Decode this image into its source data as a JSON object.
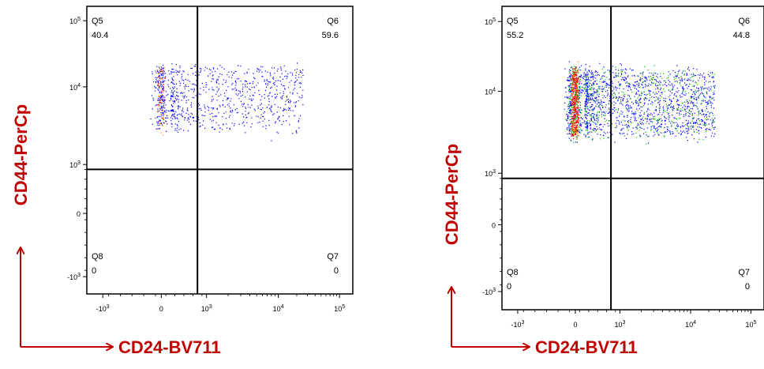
{
  "chart_data": [
    {
      "type": "scatter",
      "xlabel": "CD24-BV711",
      "ylabel": "CD44-PerCp",
      "x_scale": "biexponential",
      "y_scale": "biexponential",
      "x_ticks": [
        "-10^3",
        "0",
        "10^3",
        "10^4",
        "10^5"
      ],
      "y_ticks": [
        "10^5",
        "10^4",
        "10^3",
        "0",
        "-10^3"
      ],
      "quadrants": [
        {
          "name": "Q5",
          "value": "40.4",
          "position": "top-left"
        },
        {
          "name": "Q6",
          "value": "59.6",
          "position": "top-right"
        },
        {
          "name": "Q8",
          "value": "0",
          "position": "bottom-left"
        },
        {
          "name": "Q7",
          "value": "0",
          "position": "bottom-right"
        }
      ],
      "gate": {
        "x": 800,
        "y": 900
      },
      "population": {
        "x_range": [
          -100,
          30000
        ],
        "y_range": [
          3000,
          20000
        ],
        "density_hotspot_x": 0,
        "events": "low"
      },
      "colors": {
        "low": "#0000ff",
        "mid": "#00c000",
        "high": "#ff8000",
        "peak": "#ff0000"
      }
    },
    {
      "type": "scatter",
      "xlabel": "CD24-BV711",
      "ylabel": "CD44-PerCp",
      "x_scale": "biexponential",
      "y_scale": "biexponential",
      "x_ticks": [
        "-10^3",
        "0",
        "10^3",
        "10^4",
        "10^5"
      ],
      "y_ticks": [
        "10^5",
        "10^4",
        "10^3",
        "0",
        "-10^3"
      ],
      "quadrants": [
        {
          "name": "Q5",
          "value": "55.2",
          "position": "top-left"
        },
        {
          "name": "Q6",
          "value": "44.8",
          "position": "top-right"
        },
        {
          "name": "Q8",
          "value": "0",
          "position": "bottom-left"
        },
        {
          "name": "Q7",
          "value": "0",
          "position": "bottom-right"
        }
      ],
      "gate": {
        "x": 800,
        "y": 900
      },
      "population": {
        "x_range": [
          -100,
          30000
        ],
        "y_range": [
          3000,
          20000
        ],
        "density_hotspot_x": 0,
        "events": "high"
      },
      "colors": {
        "low": "#0000ff",
        "mid": "#00c000",
        "high": "#ff8000",
        "peak": "#ff0000"
      }
    }
  ]
}
